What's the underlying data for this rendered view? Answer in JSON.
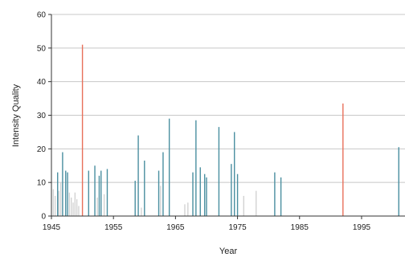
{
  "chart_data": {
    "type": "bar",
    "title": "",
    "xlabel": "Year",
    "ylabel": "Intensity Quality",
    "xlim": [
      1945,
      2002
    ],
    "ylim": [
      0,
      60
    ],
    "x_ticks": [
      1945,
      1955,
      1965,
      1975,
      1985,
      1995
    ],
    "x_tick_labels": [
      "1945",
      "1955",
      "1965",
      "1975",
      "1985",
      "1995"
    ],
    "y_ticks": [
      0,
      10,
      20,
      30,
      40,
      50,
      60
    ],
    "y_tick_labels": [
      "0",
      "10",
      "20",
      "30",
      "40",
      "50",
      "60"
    ],
    "grid": "horizontal",
    "legend": "none",
    "colors": {
      "teal": "#4a8fa0",
      "red": "#e8705a",
      "light": "#d0d0d0",
      "grid": "#c8c8c8",
      "axis": "#333333"
    },
    "series": [
      {
        "color_key": "teal",
        "x": [
          1946.0,
          1946.8,
          1947.3,
          1947.6,
          1951.0,
          1952.0,
          1952.7,
          1953.0,
          1954.0,
          1958.5,
          1959.0,
          1960.0,
          1962.3,
          1963.0,
          1964.0,
          1967.8,
          1968.3,
          1969.0,
          1969.7,
          1970.0,
          1972.0,
          1974.0,
          1974.5,
          1975.0,
          1981.0,
          1982.0,
          2001.0
        ],
        "values": [
          13.0,
          19.0,
          13.5,
          13.0,
          13.5,
          15.0,
          12.0,
          13.5,
          14.0,
          10.5,
          24.0,
          16.5,
          13.5,
          19.0,
          29.0,
          13.0,
          28.5,
          14.5,
          12.5,
          11.5,
          26.5,
          15.5,
          25.0,
          12.5,
          13.0,
          11.5,
          20.5
        ]
      },
      {
        "color_key": "red",
        "x": [
          1950.0,
          1992.0
        ],
        "values": [
          51.0,
          33.5
        ]
      },
      {
        "color_key": "light",
        "x": [
          1945.3,
          1945.6,
          1946.2,
          1946.5,
          1947.9,
          1948.2,
          1948.5,
          1948.8,
          1949.1,
          1949.4,
          1952.4,
          1953.5,
          1959.5,
          1962.6,
          1966.5,
          1967.0,
          1976.0,
          1978.0
        ],
        "values": [
          8.0,
          6.0,
          7.5,
          10.0,
          7.0,
          5.5,
          4.0,
          7.0,
          5.0,
          3.0,
          5.5,
          6.5,
          2.5,
          9.0,
          3.5,
          4.0,
          6.0,
          7.5
        ]
      }
    ]
  }
}
